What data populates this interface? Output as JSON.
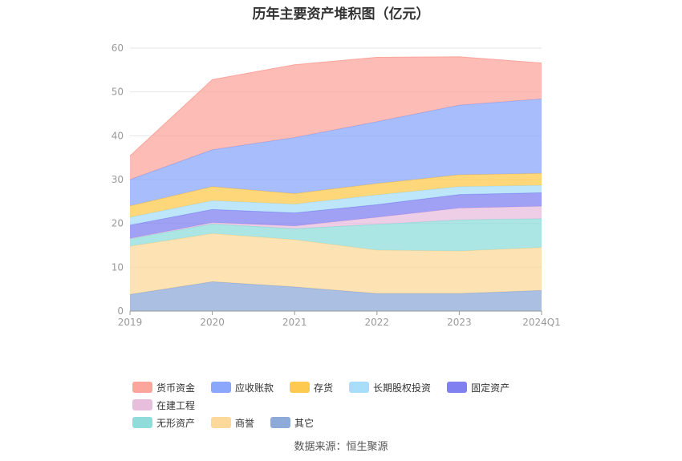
{
  "chart_data": {
    "type": "area",
    "stacked": true,
    "title": "历年主要资产堆积图（亿元）",
    "categories": [
      "2019",
      "2020",
      "2021",
      "2022",
      "2023",
      "2024Q1"
    ],
    "ylim": [
      0,
      60
    ],
    "yticks": [
      0,
      10,
      20,
      30,
      40,
      50,
      60
    ],
    "grid": true,
    "legend_position": "bottom",
    "series": [
      {
        "name": "其它",
        "color": "#8eaad8",
        "values": [
          3.8,
          6.7,
          5.5,
          4.0,
          4.0,
          4.7
        ]
      },
      {
        "name": "商誉",
        "color": "#fcd89a",
        "values": [
          11.0,
          11.0,
          10.8,
          9.9,
          9.7,
          9.8
        ]
      },
      {
        "name": "无形资产",
        "color": "#8fdcdb",
        "values": [
          1.7,
          2.2,
          2.5,
          5.9,
          7.1,
          6.6
        ]
      },
      {
        "name": "在建工程",
        "color": "#e8bedd",
        "values": [
          0.1,
          0.3,
          0.6,
          1.6,
          2.7,
          2.8
        ]
      },
      {
        "name": "固定资产",
        "color": "#8080f0",
        "values": [
          3.0,
          3.0,
          3.0,
          2.9,
          3.1,
          3.1
        ]
      },
      {
        "name": "长期股权投资",
        "color": "#a8defa",
        "values": [
          1.8,
          2.0,
          2.0,
          2.2,
          1.8,
          1.7
        ]
      },
      {
        "name": "存货",
        "color": "#fec94f",
        "values": [
          2.6,
          3.2,
          2.4,
          2.6,
          2.7,
          2.7
        ]
      },
      {
        "name": "应收账款",
        "color": "#8aa7fb",
        "values": [
          6.0,
          8.4,
          12.8,
          14.1,
          15.9,
          17.0
        ]
      },
      {
        "name": "货币资金",
        "color": "#fca59c",
        "values": [
          5.4,
          16.0,
          16.6,
          14.7,
          11.0,
          8.2
        ]
      }
    ]
  },
  "legend": {
    "row1": [
      {
        "label": "货币资金",
        "color": "#fca59c"
      },
      {
        "label": "应收账款",
        "color": "#8aa7fb"
      },
      {
        "label": "存货",
        "color": "#fec94f"
      },
      {
        "label": "长期股权投资",
        "color": "#a8defa"
      },
      {
        "label": "固定资产",
        "color": "#8080f0"
      },
      {
        "label": "在建工程",
        "color": "#e8bedd"
      }
    ],
    "row2": [
      {
        "label": "无形资产",
        "color": "#8fdcdb"
      },
      {
        "label": "商誉",
        "color": "#fcd89a"
      },
      {
        "label": "其它",
        "color": "#8eaad8"
      }
    ]
  },
  "source": "数据来源：恒生聚源"
}
